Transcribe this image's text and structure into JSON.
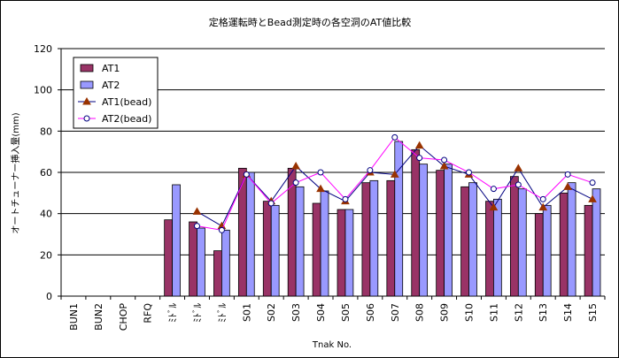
{
  "chart_data": {
    "type": "bar",
    "title": "定格運転時とBead測定時の各空洞のAT値比較",
    "xlabel": "Tnak No.",
    "ylabel": "オートチューナー挿入量(mm)",
    "ylim": [
      0,
      120
    ],
    "yticks": [
      0,
      20,
      40,
      60,
      80,
      100,
      120
    ],
    "grid": "horizontal",
    "legend_position": "top-left",
    "categories": [
      "BUN1",
      "BUN2",
      "CHOP",
      "RFQ",
      "ﾐﾄﾞﾙ",
      "ﾐﾄﾞﾙ",
      "ﾐﾄﾞﾙ",
      "S01",
      "S02",
      "S03",
      "S04",
      "S05",
      "S06",
      "S07",
      "S08",
      "S09",
      "S10",
      "S11",
      "S12",
      "S13",
      "S14",
      "S15"
    ],
    "series": [
      {
        "name": "AT1",
        "kind": "bar",
        "color": "#993366",
        "values": [
          null,
          null,
          null,
          null,
          37,
          36,
          22,
          62,
          46,
          62,
          45,
          42,
          55,
          56,
          71,
          61,
          53,
          46,
          58,
          40,
          50,
          44
        ]
      },
      {
        "name": "AT2",
        "kind": "bar",
        "color": "#9999ff",
        "values": [
          null,
          null,
          null,
          null,
          54,
          33,
          32,
          60,
          44,
          53,
          51,
          42,
          56,
          75,
          64,
          64,
          55,
          47,
          52,
          44,
          55,
          52
        ]
      },
      {
        "name": "AT1(bead)",
        "kind": "line",
        "color": "#000080",
        "marker": "triangle",
        "marker_color": "#993300",
        "values": [
          null,
          null,
          null,
          null,
          null,
          41,
          34,
          59,
          46,
          63,
          52,
          46,
          60,
          59,
          73,
          63,
          59,
          43,
          62,
          43,
          53,
          47
        ]
      },
      {
        "name": "AT2(bead)",
        "kind": "line",
        "color": "#ff00ff",
        "marker": "circle",
        "marker_color": "#000080",
        "values": [
          null,
          null,
          null,
          null,
          null,
          34,
          32,
          59,
          45,
          55,
          60,
          47,
          61,
          77,
          67,
          66,
          60,
          52,
          54,
          47,
          59,
          55
        ]
      }
    ]
  }
}
